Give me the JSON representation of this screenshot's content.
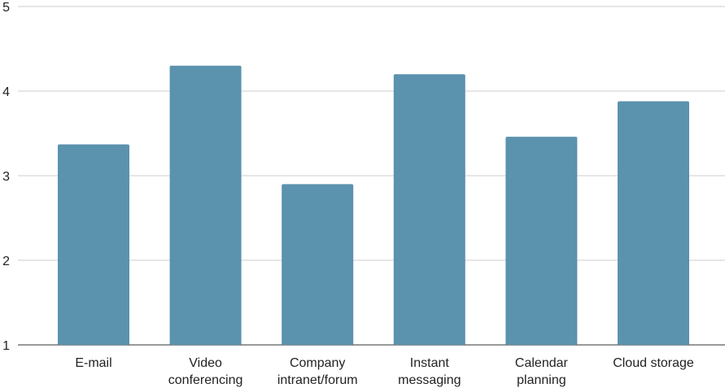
{
  "chart_data": {
    "type": "bar",
    "title": "",
    "xlabel": "",
    "ylabel": "",
    "ylim": [
      1,
      5
    ],
    "yticks": [
      1,
      2,
      3,
      4,
      5
    ],
    "grid": true,
    "legend": "none",
    "bar_color": "#5b92ae",
    "categories": [
      [
        "E-mail"
      ],
      [
        "Video",
        "conferencing"
      ],
      [
        "Company",
        "intranet/forum"
      ],
      [
        "Instant",
        "messaging"
      ],
      [
        "Calendar",
        "planning"
      ],
      [
        "Cloud storage"
      ]
    ],
    "values": [
      3.37,
      4.3,
      2.9,
      4.2,
      3.46,
      3.88
    ]
  }
}
